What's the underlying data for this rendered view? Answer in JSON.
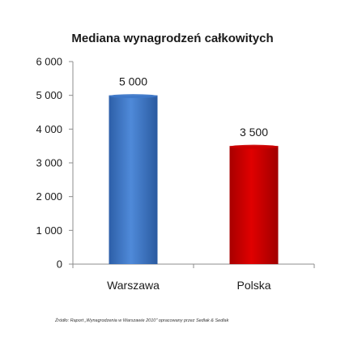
{
  "chart_data": {
    "type": "bar",
    "title": "Mediana wynagrodzeń całkowitych",
    "categories": [
      "Warszawa",
      "Polska"
    ],
    "values": [
      5000,
      3500
    ],
    "value_labels": [
      "5 000",
      "3 500"
    ],
    "ylim": [
      0,
      6000
    ],
    "yticks": [
      0,
      1000,
      2000,
      3000,
      4000,
      5000,
      6000
    ],
    "ytick_labels": [
      "0",
      "1 000",
      "2 000",
      "3 000",
      "4 000",
      "5 000",
      "6 000"
    ],
    "grid": false,
    "colors": [
      "#3e78c9",
      "#cc0000"
    ],
    "source": "Źródło: Raport „Wynagrodzenia w Warszawie 2010\" opracowany przez Sedlak & Sedlak"
  }
}
